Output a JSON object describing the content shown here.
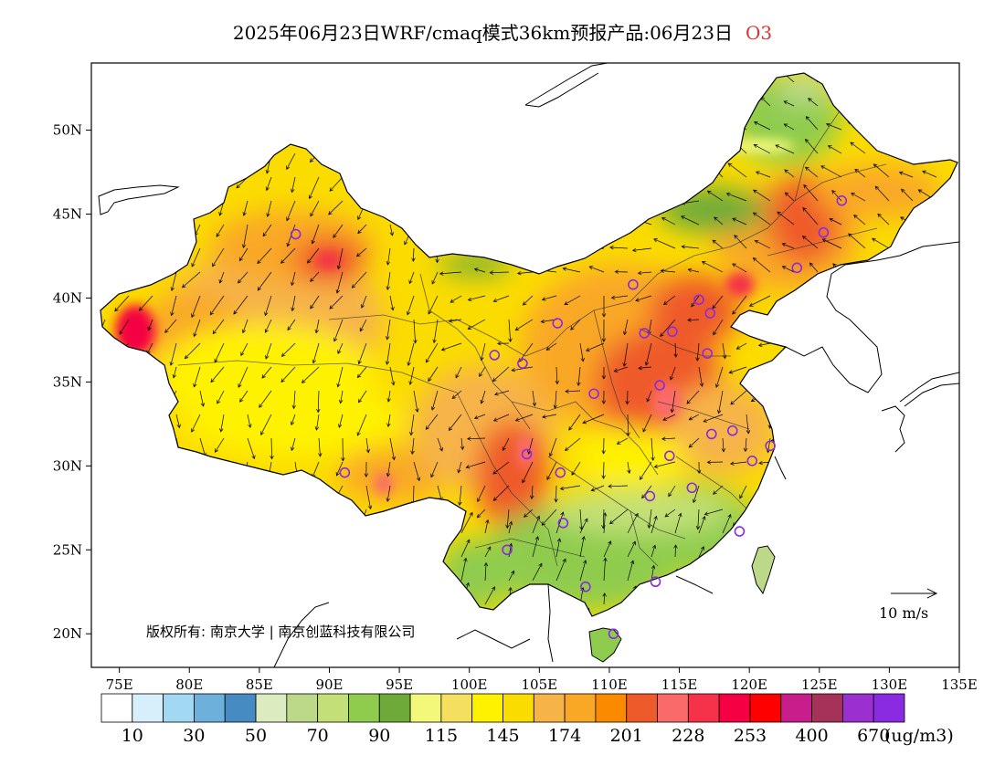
{
  "header": {
    "title": "2025年06月23日WRF/cmaq模式36km预报产品:06月23日",
    "pollutant": "O3"
  },
  "map": {
    "lon_range": [
      73,
      135
    ],
    "lat_range": [
      18,
      54
    ],
    "lon_ticks": [
      "75E",
      "80E",
      "85E",
      "90E",
      "95E",
      "100E",
      "105E",
      "110E",
      "115E",
      "120E",
      "125E",
      "130E",
      "135E"
    ],
    "lat_ticks": [
      "20N",
      "25N",
      "30N",
      "35N",
      "40N",
      "45N",
      "50N"
    ],
    "copyright": "版权所有: 南京大学 | 南京创蓝科技有限公司",
    "wind_scale_label": "10 m/s",
    "stations": [
      [
        87.6,
        43.8
      ],
      [
        91.1,
        29.6
      ],
      [
        101.8,
        36.6
      ],
      [
        103.8,
        36.1
      ],
      [
        106.3,
        38.5
      ],
      [
        104.1,
        30.7
      ],
      [
        106.5,
        29.6
      ],
      [
        106.7,
        26.6
      ],
      [
        102.7,
        25.0
      ],
      [
        108.3,
        22.8
      ],
      [
        110.3,
        20.0
      ],
      [
        113.3,
        23.1
      ],
      [
        108.9,
        34.3
      ],
      [
        111.7,
        40.8
      ],
      [
        112.5,
        37.9
      ],
      [
        114.5,
        38.0
      ],
      [
        113.6,
        34.8
      ],
      [
        114.3,
        30.6
      ],
      [
        112.9,
        28.2
      ],
      [
        115.9,
        28.7
      ],
      [
        117.3,
        31.9
      ],
      [
        118.8,
        32.1
      ],
      [
        120.2,
        30.3
      ],
      [
        121.5,
        31.2
      ],
      [
        119.3,
        26.1
      ],
      [
        117.0,
        36.7
      ],
      [
        117.2,
        39.1
      ],
      [
        116.4,
        39.9
      ],
      [
        123.4,
        41.8
      ],
      [
        125.3,
        43.9
      ],
      [
        126.6,
        45.8
      ]
    ]
  },
  "colorbar": {
    "unit": "(ug/m3)",
    "colors": [
      "#ffffff",
      "#d6effa",
      "#a2d8f2",
      "#6eb0dc",
      "#468bc2",
      "#dcebc0",
      "#bcd98a",
      "#c3e078",
      "#8fcc4e",
      "#6eaa3a",
      "#f3f87a",
      "#f4e05e",
      "#fff200",
      "#fbdc00",
      "#f6b448",
      "#f9a825",
      "#fb8a00",
      "#ef5a2a",
      "#fb6a6a",
      "#f5324a",
      "#f50042",
      "#ff0000",
      "#c81e8c",
      "#a6325a",
      "#9b30d0",
      "#8a2be2"
    ],
    "labels": [
      "10",
      "30",
      "50",
      "70",
      "90",
      "115",
      "145",
      "174",
      "201",
      "228",
      "253",
      "400",
      "670"
    ]
  },
  "legend_scale": {
    "series": [
      "O3"
    ]
  }
}
